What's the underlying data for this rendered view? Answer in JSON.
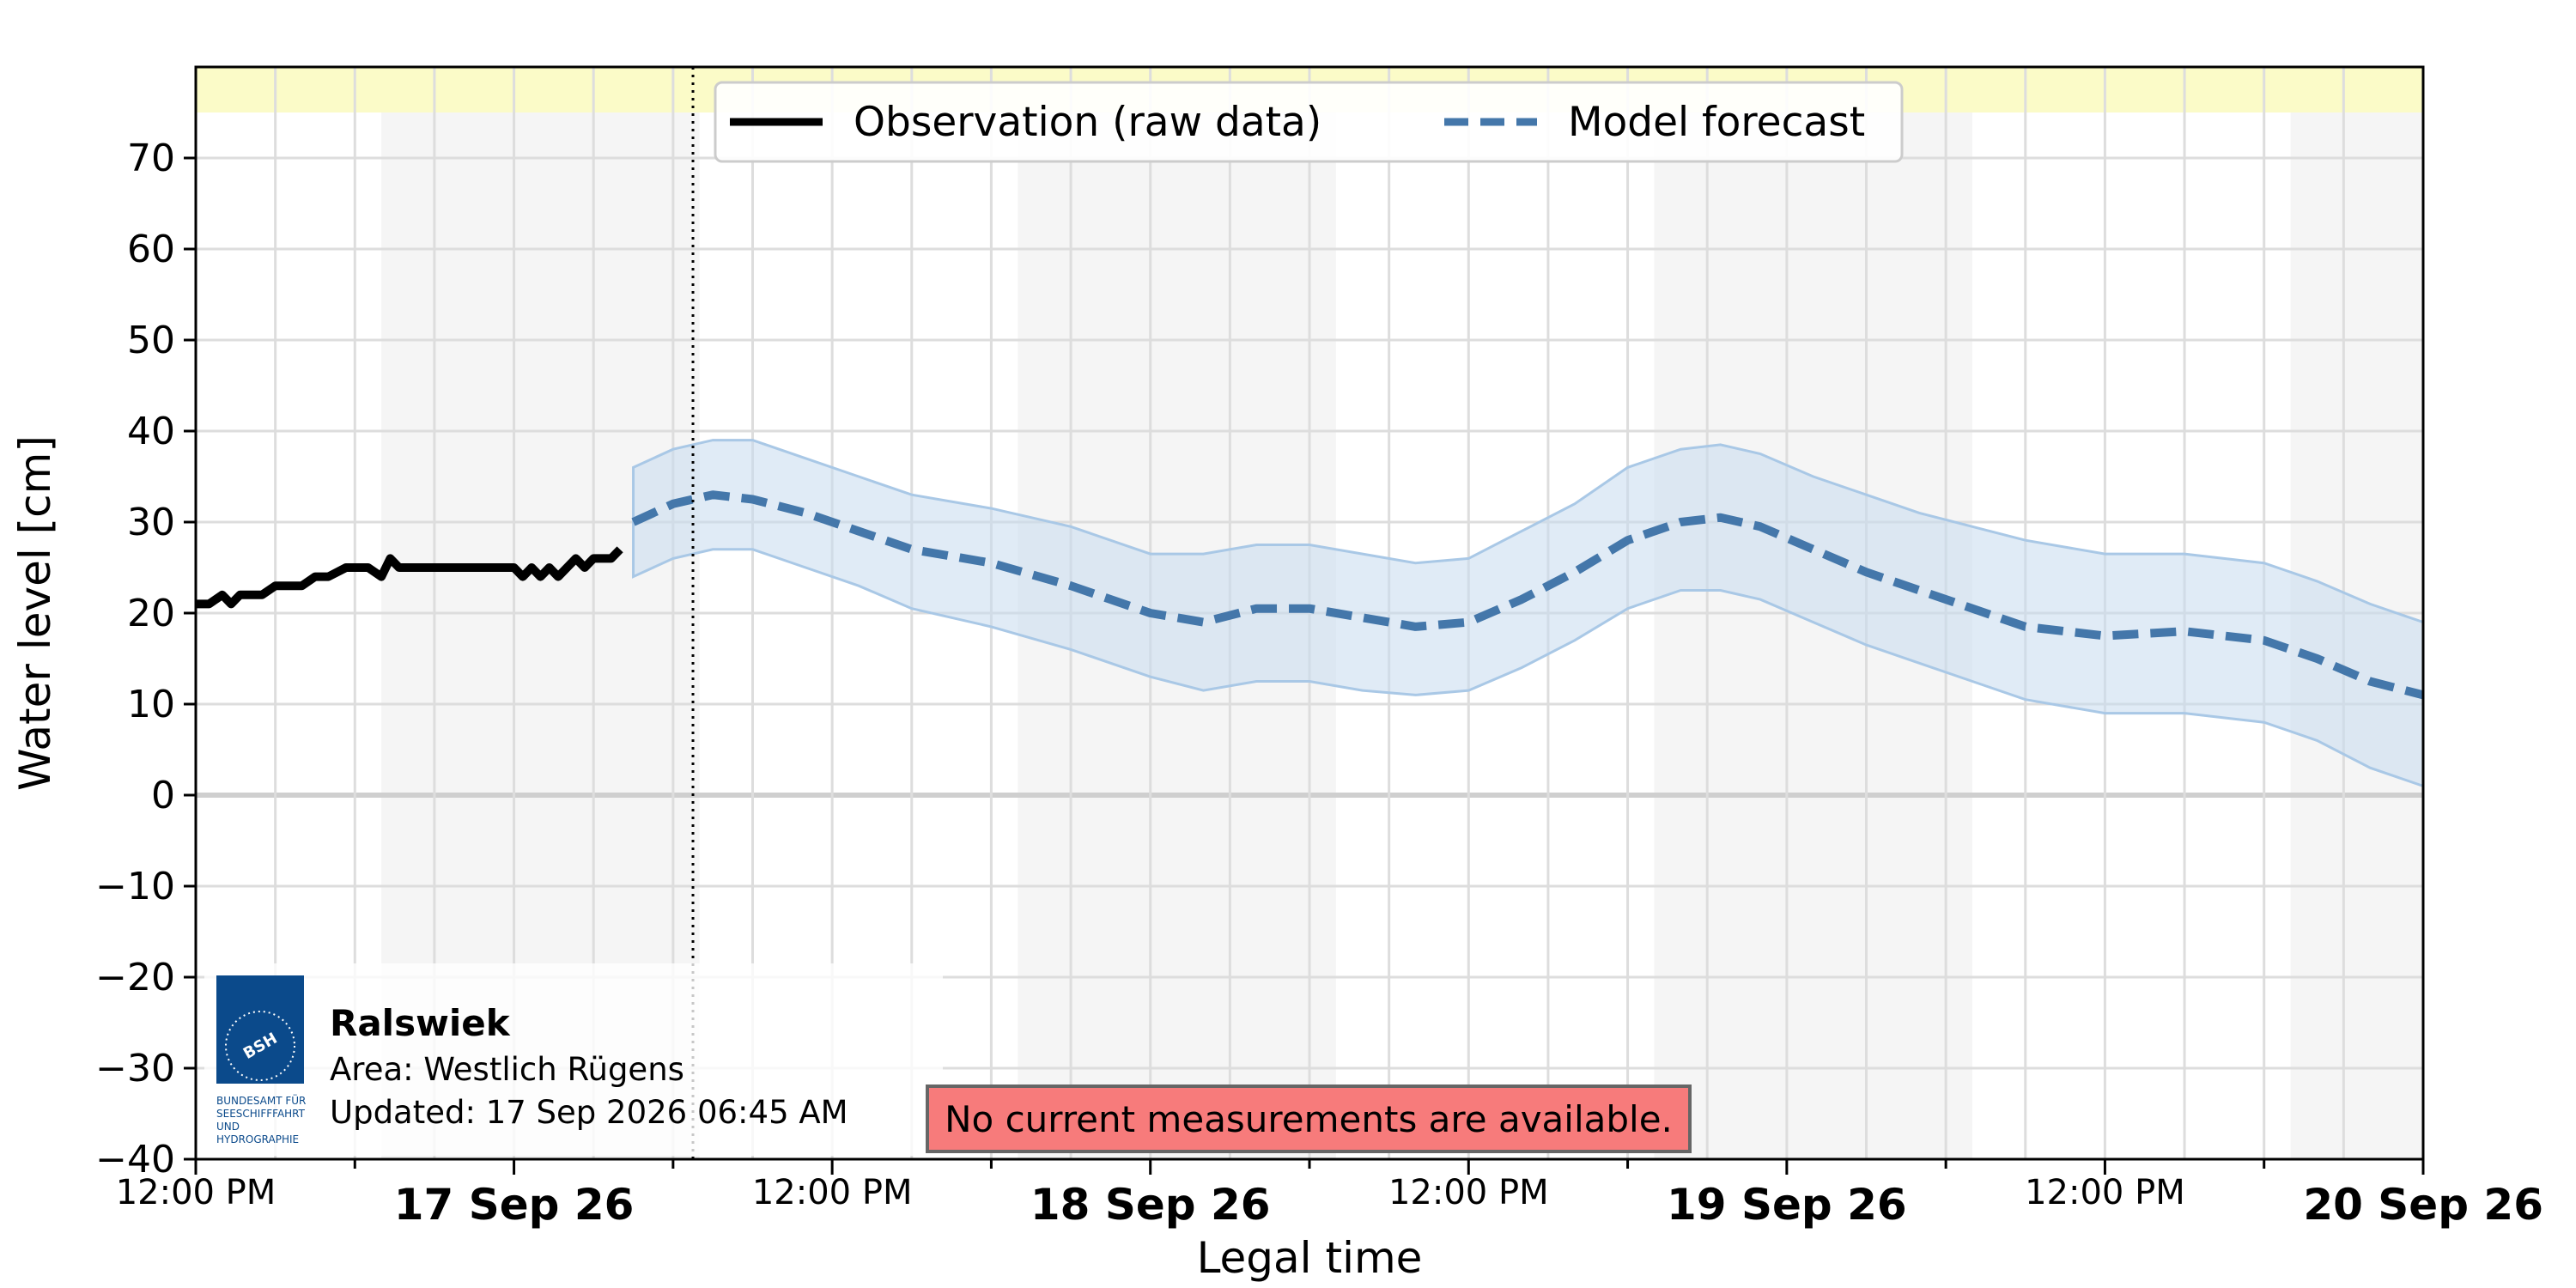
{
  "chart_data": {
    "type": "line",
    "xlabel": "Legal time",
    "ylabel": "Water level [cm]",
    "ylim": [
      -40,
      80
    ],
    "xlim": [
      "2026-09-16T12:00",
      "2026-09-20T00:00"
    ],
    "yticks": [
      -40,
      -30,
      -20,
      -10,
      0,
      10,
      20,
      30,
      40,
      50,
      60,
      70
    ],
    "ytick_labels": [
      "−40",
      "−30",
      "−20",
      "−10",
      "0",
      "10",
      "20",
      "30",
      "40",
      "50",
      "60",
      "70"
    ],
    "xticks_minor": [
      {
        "t": "2026-09-16T12:00",
        "label": "12:00 PM"
      },
      {
        "t": "2026-09-17T12:00",
        "label": "12:00 PM"
      },
      {
        "t": "2026-09-18T12:00",
        "label": "12:00 PM"
      },
      {
        "t": "2026-09-19T12:00",
        "label": "12:00 PM"
      }
    ],
    "xticks_major": [
      {
        "t": "2026-09-17T00:00",
        "label": "17 Sep 26"
      },
      {
        "t": "2026-09-18T00:00",
        "label": "18 Sep 26"
      },
      {
        "t": "2026-09-19T00:00",
        "label": "19 Sep 26"
      },
      {
        "t": "2026-09-20T00:00",
        "label": "20 Sep 26"
      }
    ],
    "grid": true,
    "legend_position": "top-center",
    "night_bands": [
      [
        "2026-09-16T19:00",
        "2026-09-17T07:00"
      ],
      [
        "2026-09-17T19:00",
        "2026-09-18T07:00"
      ],
      [
        "2026-09-18T19:00",
        "2026-09-19T07:00"
      ],
      [
        "2026-09-19T19:00",
        "2026-09-20T00:00"
      ]
    ],
    "highlight_band": [
      75,
      80
    ],
    "current_time": "2026-09-17T06:45",
    "series": [
      {
        "name": "Observation (raw data)",
        "style": "solid",
        "color": "#000000",
        "points": [
          [
            "2026-09-16T12:00",
            21
          ],
          [
            "2026-09-16T12:30",
            21
          ],
          [
            "2026-09-16T13:00",
            22
          ],
          [
            "2026-09-16T13:20",
            21
          ],
          [
            "2026-09-16T13:40",
            22
          ],
          [
            "2026-09-16T14:30",
            22
          ],
          [
            "2026-09-16T15:00",
            23
          ],
          [
            "2026-09-16T16:00",
            23
          ],
          [
            "2026-09-16T16:30",
            24
          ],
          [
            "2026-09-16T17:00",
            24
          ],
          [
            "2026-09-16T17:40",
            25
          ],
          [
            "2026-09-16T18:30",
            25
          ],
          [
            "2026-09-16T19:00",
            24
          ],
          [
            "2026-09-16T19:20",
            26
          ],
          [
            "2026-09-16T19:40",
            25
          ],
          [
            "2026-09-16T21:00",
            25
          ],
          [
            "2026-09-16T23:30",
            25
          ],
          [
            "2026-09-17T00:00",
            25
          ],
          [
            "2026-09-17T00:20",
            24
          ],
          [
            "2026-09-17T00:40",
            25
          ],
          [
            "2026-09-17T01:00",
            24
          ],
          [
            "2026-09-17T01:20",
            25
          ],
          [
            "2026-09-17T01:40",
            24
          ],
          [
            "2026-09-17T02:00",
            25
          ],
          [
            "2026-09-17T02:20",
            26
          ],
          [
            "2026-09-17T02:40",
            25
          ],
          [
            "2026-09-17T03:00",
            26
          ],
          [
            "2026-09-17T03:40",
            26
          ],
          [
            "2026-09-17T04:00",
            27
          ]
        ]
      },
      {
        "name": "Model forecast",
        "style": "dashed",
        "color": "#4477aa",
        "band_color": "#c6dbef",
        "points": [
          [
            "2026-09-17T04:30",
            30,
            24,
            36
          ],
          [
            "2026-09-17T06:00",
            32,
            26,
            38
          ],
          [
            "2026-09-17T07:30",
            33,
            27,
            39
          ],
          [
            "2026-09-17T09:00",
            32.5,
            27,
            39
          ],
          [
            "2026-09-17T11:00",
            31,
            25,
            37
          ],
          [
            "2026-09-17T13:00",
            29,
            23,
            35
          ],
          [
            "2026-09-17T15:00",
            27,
            20.5,
            33
          ],
          [
            "2026-09-17T18:00",
            25.5,
            18.5,
            31.5
          ],
          [
            "2026-09-17T21:00",
            23,
            16,
            29.5
          ],
          [
            "2026-09-18T00:00",
            20,
            13,
            26.5
          ],
          [
            "2026-09-18T02:00",
            19,
            11.5,
            26.5
          ],
          [
            "2026-09-18T04:00",
            20.5,
            12.5,
            27.5
          ],
          [
            "2026-09-18T06:00",
            20.5,
            12.5,
            27.5
          ],
          [
            "2026-09-18T08:00",
            19.5,
            11.5,
            26.5
          ],
          [
            "2026-09-18T10:00",
            18.5,
            11,
            25.5
          ],
          [
            "2026-09-18T12:00",
            19,
            11.5,
            26
          ],
          [
            "2026-09-18T14:00",
            21.5,
            14,
            29
          ],
          [
            "2026-09-18T16:00",
            24.5,
            17,
            32
          ],
          [
            "2026-09-18T18:00",
            28,
            20.5,
            36
          ],
          [
            "2026-09-18T20:00",
            30,
            22.5,
            38
          ],
          [
            "2026-09-18T21:30",
            30.5,
            22.5,
            38.5
          ],
          [
            "2026-09-18T23:00",
            29.5,
            21.5,
            37.5
          ],
          [
            "2026-09-19T01:00",
            27,
            19,
            35
          ],
          [
            "2026-09-19T03:00",
            24.5,
            16.5,
            33
          ],
          [
            "2026-09-19T05:00",
            22.5,
            14.5,
            31
          ],
          [
            "2026-09-19T07:00",
            20.5,
            12.5,
            29.5
          ],
          [
            "2026-09-19T09:00",
            18.5,
            10.5,
            28
          ],
          [
            "2026-09-19T12:00",
            17.5,
            9,
            26.5
          ],
          [
            "2026-09-19T15:00",
            18,
            9,
            26.5
          ],
          [
            "2026-09-19T18:00",
            17,
            8,
            25.5
          ],
          [
            "2026-09-19T20:00",
            15,
            6,
            23.5
          ],
          [
            "2026-09-19T22:00",
            12.5,
            3,
            21
          ],
          [
            "2026-09-20T00:00",
            11,
            1,
            19
          ]
        ]
      }
    ]
  },
  "station": {
    "name": "Ralswiek",
    "area": "Area: Westlich Rügens",
    "updated": "Updated: 17 Sep 2026 06:45 AM"
  },
  "logo": {
    "abbr": "BSH",
    "lines": [
      "BUNDESAMT FÜR",
      "SEESCHIFFFAHRT",
      "UND",
      "HYDROGRAPHIE"
    ]
  },
  "warning": "No current measurements are available."
}
